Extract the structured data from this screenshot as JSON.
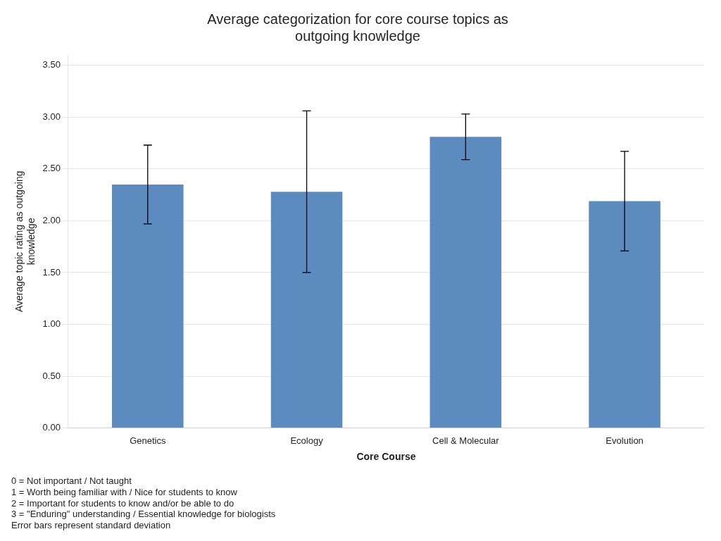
{
  "chart_data": {
    "type": "bar",
    "title": "Average categorization for core course topics as\noutgoing knowledge",
    "categories": [
      "Genetics",
      "Ecology",
      "Cell & Molecular",
      "Evolution"
    ],
    "values": [
      2.35,
      2.28,
      2.81,
      2.19
    ],
    "errors": [
      0.38,
      0.78,
      0.22,
      0.48
    ],
    "color": "#5b8bbf",
    "xlabel": "Core Course",
    "ylabel": "Average topic rating as outgoing\nknowledge",
    "ylim": [
      0.0,
      3.6
    ],
    "yticks": [
      {
        "value": 0.0,
        "label": "0.00"
      },
      {
        "value": 0.5,
        "label": "0.50"
      },
      {
        "value": 1.0,
        "label": "1.00"
      },
      {
        "value": 1.5,
        "label": "1.50"
      },
      {
        "value": 2.0,
        "label": "2.00"
      },
      {
        "value": 2.5,
        "label": "2.50"
      },
      {
        "value": 3.0,
        "label": "3.00"
      },
      {
        "value": 3.5,
        "label": "3.50"
      }
    ],
    "grid": true,
    "annotations": [
      "0 = Not important / Not taught",
      "1 = Worth being familiar with / Nice for students to know",
      "2 = Important for students to know and/or be able to do",
      "3 = \"Enduring\" understanding / Essential knowledge for biologists",
      "Error bars represent standard deviation"
    ]
  }
}
